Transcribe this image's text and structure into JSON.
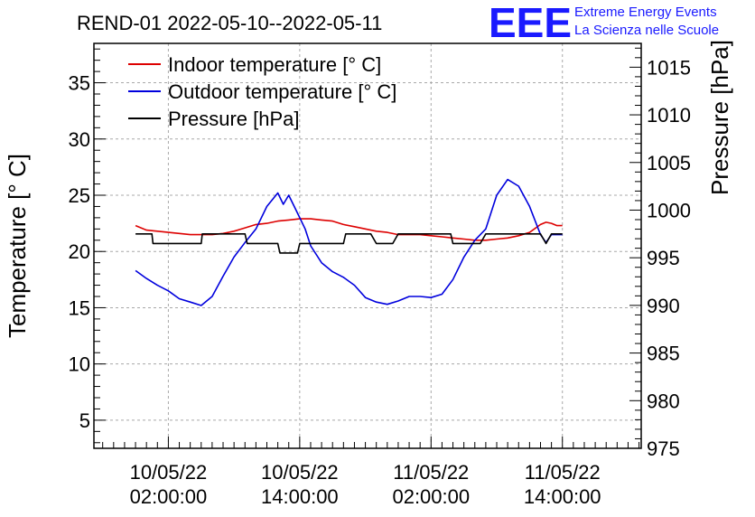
{
  "header": {
    "title": "REND-01 2022-05-10--2022-05-11",
    "logo_text": "EEE",
    "logo_line1": "Extreme Energy Events",
    "logo_line2": "La Scienza nelle Scuole"
  },
  "colors": {
    "indoor": "#dd0000",
    "outdoor": "#0000dd",
    "pressure": "#000000",
    "logo": "#1a1aff",
    "grid": "#a8a8a8"
  },
  "chart_data": {
    "type": "line",
    "title": "REND-01 2022-05-10--2022-05-11",
    "ylabel": "Temperature [° C]",
    "y2label": "Pressure [hPa]",
    "xlabel": "",
    "x_unit": "hours since 2022-05-10 00:00",
    "xlim": [
      -4.8,
      45.2
    ],
    "ylim": [
      2.5,
      38.5
    ],
    "y2lim": [
      975,
      1017.5
    ],
    "grid": true,
    "legend_position": "top-left",
    "yticks": [
      5,
      10,
      15,
      20,
      25,
      30,
      35
    ],
    "y2ticks": [
      975,
      980,
      985,
      990,
      995,
      1000,
      1005,
      1010,
      1015
    ],
    "xticks": [
      {
        "x": 2,
        "date": "10/05/22",
        "time": "02:00:00"
      },
      {
        "x": 14,
        "date": "10/05/22",
        "time": "14:00:00"
      },
      {
        "x": 26,
        "date": "11/05/22",
        "time": "02:00:00"
      },
      {
        "x": 38,
        "date": "11/05/22",
        "time": "14:00:00"
      }
    ],
    "series": [
      {
        "name": "Indoor temperature [° C]",
        "axis": "left",
        "x": [
          -1.0,
          0,
          1,
          2,
          3,
          4,
          5,
          6,
          7,
          8,
          9,
          10,
          11,
          12,
          13,
          14,
          15,
          16,
          17,
          18,
          19,
          20,
          21,
          22,
          23,
          24,
          25,
          26,
          27,
          28,
          29,
          30,
          31,
          32,
          33,
          34,
          35,
          36,
          36.5,
          37,
          37.5,
          38
        ],
        "y": [
          22.3,
          21.9,
          21.8,
          21.7,
          21.6,
          21.5,
          21.5,
          21.5,
          21.6,
          21.8,
          22.1,
          22.4,
          22.5,
          22.7,
          22.8,
          22.9,
          22.9,
          22.8,
          22.7,
          22.4,
          22.2,
          22.0,
          21.8,
          21.7,
          21.5,
          21.5,
          21.5,
          21.4,
          21.3,
          21.2,
          21.1,
          21.0,
          21.0,
          21.1,
          21.2,
          21.4,
          21.7,
          22.4,
          22.6,
          22.5,
          22.3,
          22.3
        ]
      },
      {
        "name": "Outdoor temperature [° C]",
        "axis": "left",
        "x": [
          -1.0,
          0,
          1,
          2,
          3,
          4,
          5,
          6,
          7,
          8,
          9,
          10,
          11,
          12,
          12.5,
          13,
          13.5,
          14,
          14.5,
          15,
          16,
          17,
          18,
          19,
          20,
          21,
          22,
          23,
          24,
          25,
          26,
          27,
          28,
          29,
          30,
          31,
          32,
          33,
          34,
          35,
          36,
          36.5,
          37,
          37.5,
          38
        ],
        "y": [
          18.3,
          17.6,
          17.0,
          16.5,
          15.8,
          15.5,
          15.2,
          16.0,
          17.8,
          19.5,
          20.8,
          22.0,
          24.0,
          25.2,
          24.2,
          25.0,
          24.0,
          23.0,
          22.0,
          20.5,
          19.0,
          18.2,
          17.7,
          17.0,
          15.9,
          15.5,
          15.3,
          15.6,
          16.0,
          16.0,
          15.9,
          16.2,
          17.5,
          19.5,
          21.0,
          22.0,
          25.0,
          26.4,
          25.8,
          24.0,
          21.5,
          20.8,
          21.5,
          21.5,
          21.5
        ]
      },
      {
        "name": "Pressure [hPa]",
        "axis": "right",
        "x": [
          -1.0,
          0.5,
          0.6,
          2.0,
          5.0,
          5.1,
          7.0,
          9.0,
          9.2,
          10.4,
          12.0,
          12.2,
          13.8,
          14.0,
          18.0,
          18.2,
          20.5,
          21.0,
          22.5,
          23.0,
          27.8,
          28.0,
          30.5,
          31.0,
          36.0,
          36.5,
          37.0,
          37.5,
          38.0
        ],
        "y": [
          997.5,
          997.5,
          996.5,
          996.5,
          996.5,
          997.5,
          997.5,
          997.5,
          996.5,
          996.5,
          996.5,
          995.5,
          995.5,
          996.5,
          996.5,
          997.5,
          997.5,
          996.5,
          996.5,
          997.5,
          997.5,
          996.5,
          996.5,
          997.5,
          997.5,
          996.5,
          997.5,
          997.5,
          997.5
        ]
      }
    ]
  }
}
